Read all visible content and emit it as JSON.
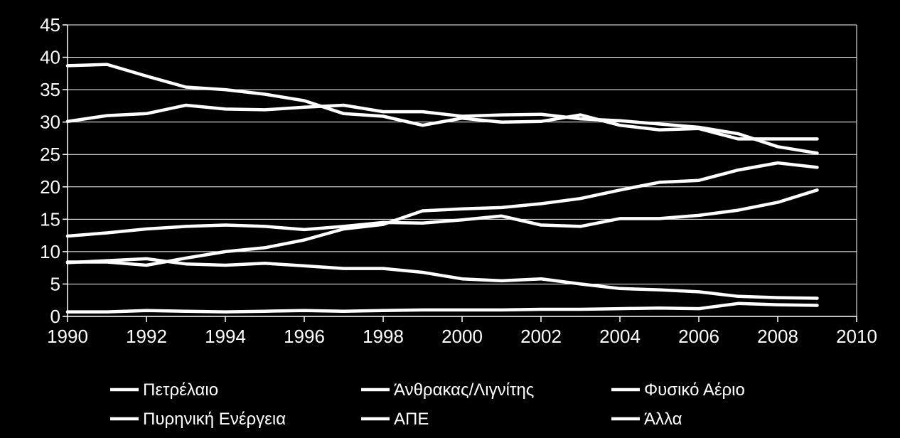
{
  "chart_data": {
    "type": "line",
    "title": "",
    "xlabel": "",
    "ylabel": "",
    "xlim": [
      1990,
      2010
    ],
    "ylim": [
      0,
      45
    ],
    "x_ticks": [
      1990,
      1992,
      1994,
      1996,
      1998,
      2000,
      2002,
      2004,
      2006,
      2008,
      2010
    ],
    "y_ticks": [
      0,
      5,
      10,
      15,
      20,
      25,
      30,
      35,
      40,
      45
    ],
    "grid": true,
    "legend_position": "bottom",
    "line_color": "#ffffff",
    "background": "#000000",
    "x": [
      1990,
      1991,
      1992,
      1993,
      1994,
      1995,
      1996,
      1997,
      1998,
      1999,
      2000,
      2001,
      2002,
      2003,
      2004,
      2005,
      2006,
      2007,
      2008,
      2009
    ],
    "series": [
      {
        "name": "Πετρέλαιο",
        "values": [
          38.7,
          38.9,
          37.1,
          35.4,
          35.0,
          34.3,
          33.3,
          31.3,
          30.9,
          29.5,
          30.6,
          30.0,
          30.1,
          31.1,
          29.5,
          28.8,
          29.0,
          27.4,
          27.4,
          27.4
        ]
      },
      {
        "name": "Άνθρακας/Λιγνίτης",
        "values": [
          30.1,
          31.0,
          31.3,
          32.6,
          32.0,
          31.9,
          32.3,
          32.6,
          31.6,
          31.6,
          30.9,
          31.1,
          31.2,
          30.5,
          30.2,
          29.7,
          29.2,
          28.2,
          26.2,
          25.2
        ]
      },
      {
        "name": "Φυσικό Αέριο",
        "values": [
          8.4,
          8.4,
          7.9,
          9.0,
          10.0,
          10.6,
          11.8,
          13.5,
          14.2,
          16.3,
          16.6,
          16.8,
          17.4,
          18.2,
          19.5,
          20.7,
          21.0,
          22.6,
          23.7,
          23.0
        ]
      },
      {
        "name": "Πυρηνική Ενέργεια",
        "values": [
          12.4,
          12.9,
          13.5,
          13.9,
          14.1,
          13.9,
          13.4,
          13.9,
          14.5,
          14.4,
          14.9,
          15.5,
          14.1,
          13.9,
          15.1,
          15.1,
          15.6,
          16.4,
          17.6,
          19.5
        ]
      },
      {
        "name": "ΑΠΕ",
        "values": [
          8.3,
          8.6,
          8.9,
          8.1,
          7.9,
          8.2,
          7.8,
          7.4,
          7.4,
          6.8,
          5.8,
          5.5,
          5.8,
          5.0,
          4.3,
          4.1,
          3.8,
          3.1,
          2.9,
          2.8
        ]
      },
      {
        "name": "Άλλα",
        "values": [
          0.7,
          0.7,
          0.9,
          0.8,
          0.7,
          0.8,
          0.9,
          0.8,
          0.9,
          1.0,
          1.0,
          1.0,
          1.1,
          1.1,
          1.2,
          1.3,
          1.2,
          2.0,
          1.8,
          1.7
        ]
      }
    ]
  }
}
